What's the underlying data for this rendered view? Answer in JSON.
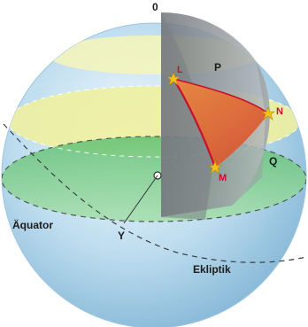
{
  "labels": {
    "top": "0",
    "point_l": "L",
    "point_p": "P",
    "point_n": "N",
    "point_m": "M",
    "point_q": "Q",
    "equator": "Äquator",
    "vernal_point": "Y",
    "ecliptic": "Ekliptik"
  },
  "colors": {
    "sphere_light": "#f4fbff",
    "sphere_mid": "#bcdcee",
    "sphere_dark": "#7fb3d4",
    "yellow_band": "#f3f2a0",
    "green_plane": "#7ed08a",
    "grey_plane": "#8c9196",
    "triangle_fill": "#e2632e",
    "arc_red": "#c8102e",
    "star": "#f2c21a"
  },
  "icons": [
    "star-marker-icon"
  ]
}
